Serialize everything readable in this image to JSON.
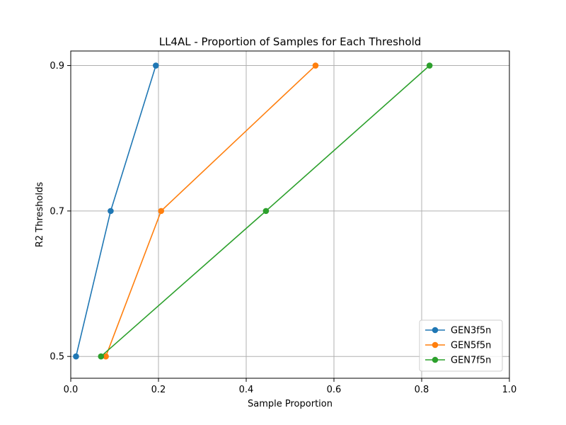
{
  "chart_data": {
    "type": "line",
    "title": "LL4AL - Proportion of Samples for Each Threshold",
    "xlabel": "Sample Proportion",
    "ylabel": "R2 Thresholds",
    "xlim": [
      0.0,
      1.0
    ],
    "ylim": [
      0.47,
      0.92
    ],
    "x_ticks": [
      0.0,
      0.2,
      0.4,
      0.6,
      0.8,
      1.0
    ],
    "x_tick_labels": [
      "0.0",
      "0.2",
      "0.4",
      "0.6",
      "0.8",
      "1.0"
    ],
    "y_ticks": [
      0.5,
      0.7,
      0.9
    ],
    "y_tick_labels": [
      "0.5",
      "0.7",
      "0.9"
    ],
    "grid": true,
    "legend_position": "lower right",
    "series": [
      {
        "name": "GEN3f5n",
        "color": "#1f77b4",
        "marker": "circle",
        "points": [
          {
            "x": 0.012,
            "y": 0.5
          },
          {
            "x": 0.091,
            "y": 0.7
          },
          {
            "x": 0.194,
            "y": 0.9
          }
        ]
      },
      {
        "name": "GEN5f5n",
        "color": "#ff7f0e",
        "marker": "circle",
        "points": [
          {
            "x": 0.08,
            "y": 0.5
          },
          {
            "x": 0.206,
            "y": 0.7
          },
          {
            "x": 0.558,
            "y": 0.9
          }
        ]
      },
      {
        "name": "GEN7f5n",
        "color": "#2ca02c",
        "marker": "circle",
        "points": [
          {
            "x": 0.069,
            "y": 0.5
          },
          {
            "x": 0.445,
            "y": 0.7
          },
          {
            "x": 0.818,
            "y": 0.9
          }
        ]
      }
    ]
  }
}
